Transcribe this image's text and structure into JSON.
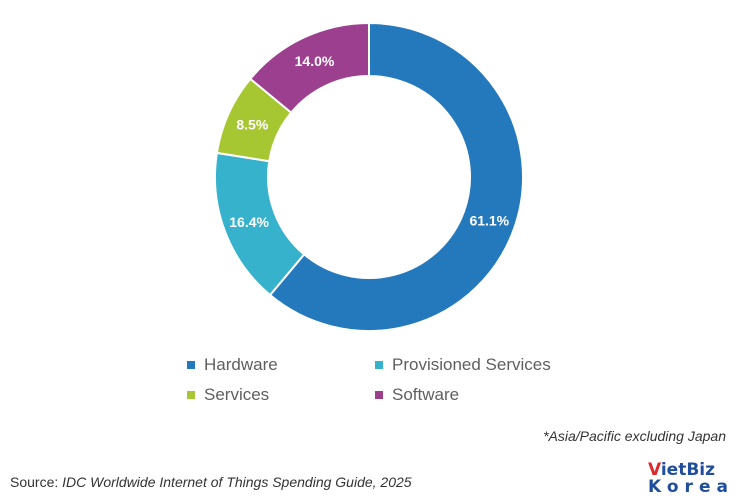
{
  "chart_data": {
    "type": "pie",
    "donut": true,
    "start_angle_deg": 0,
    "direction": "clockwise",
    "slices": [
      {
        "label": "Hardware",
        "value": 61.1,
        "value_label": "61.1%",
        "color": "#2479bd"
      },
      {
        "label": "Provisioned Services",
        "value": 16.4,
        "value_label": "16.4%",
        "color": "#37b2cc"
      },
      {
        "label": "Services",
        "value": 8.5,
        "value_label": "8.5%",
        "color": "#a6c731"
      },
      {
        "label": "Software",
        "value": 14.0,
        "value_label": "14.0%",
        "color": "#9c3f8f"
      }
    ],
    "legend": [
      "Hardware",
      "Provisioned Services",
      "Services",
      "Software"
    ],
    "legend_position": "bottom"
  },
  "footnote": "*Asia/Pacific excluding Japan",
  "source": {
    "prefix": "Source: ",
    "reference": "IDC Worldwide Internet of Things Spending Guide, 2025"
  },
  "logo": {
    "text": "VietBiz Korea",
    "line1_red": "V",
    "line1_blue": "ietBiz",
    "line2": "Korea"
  }
}
